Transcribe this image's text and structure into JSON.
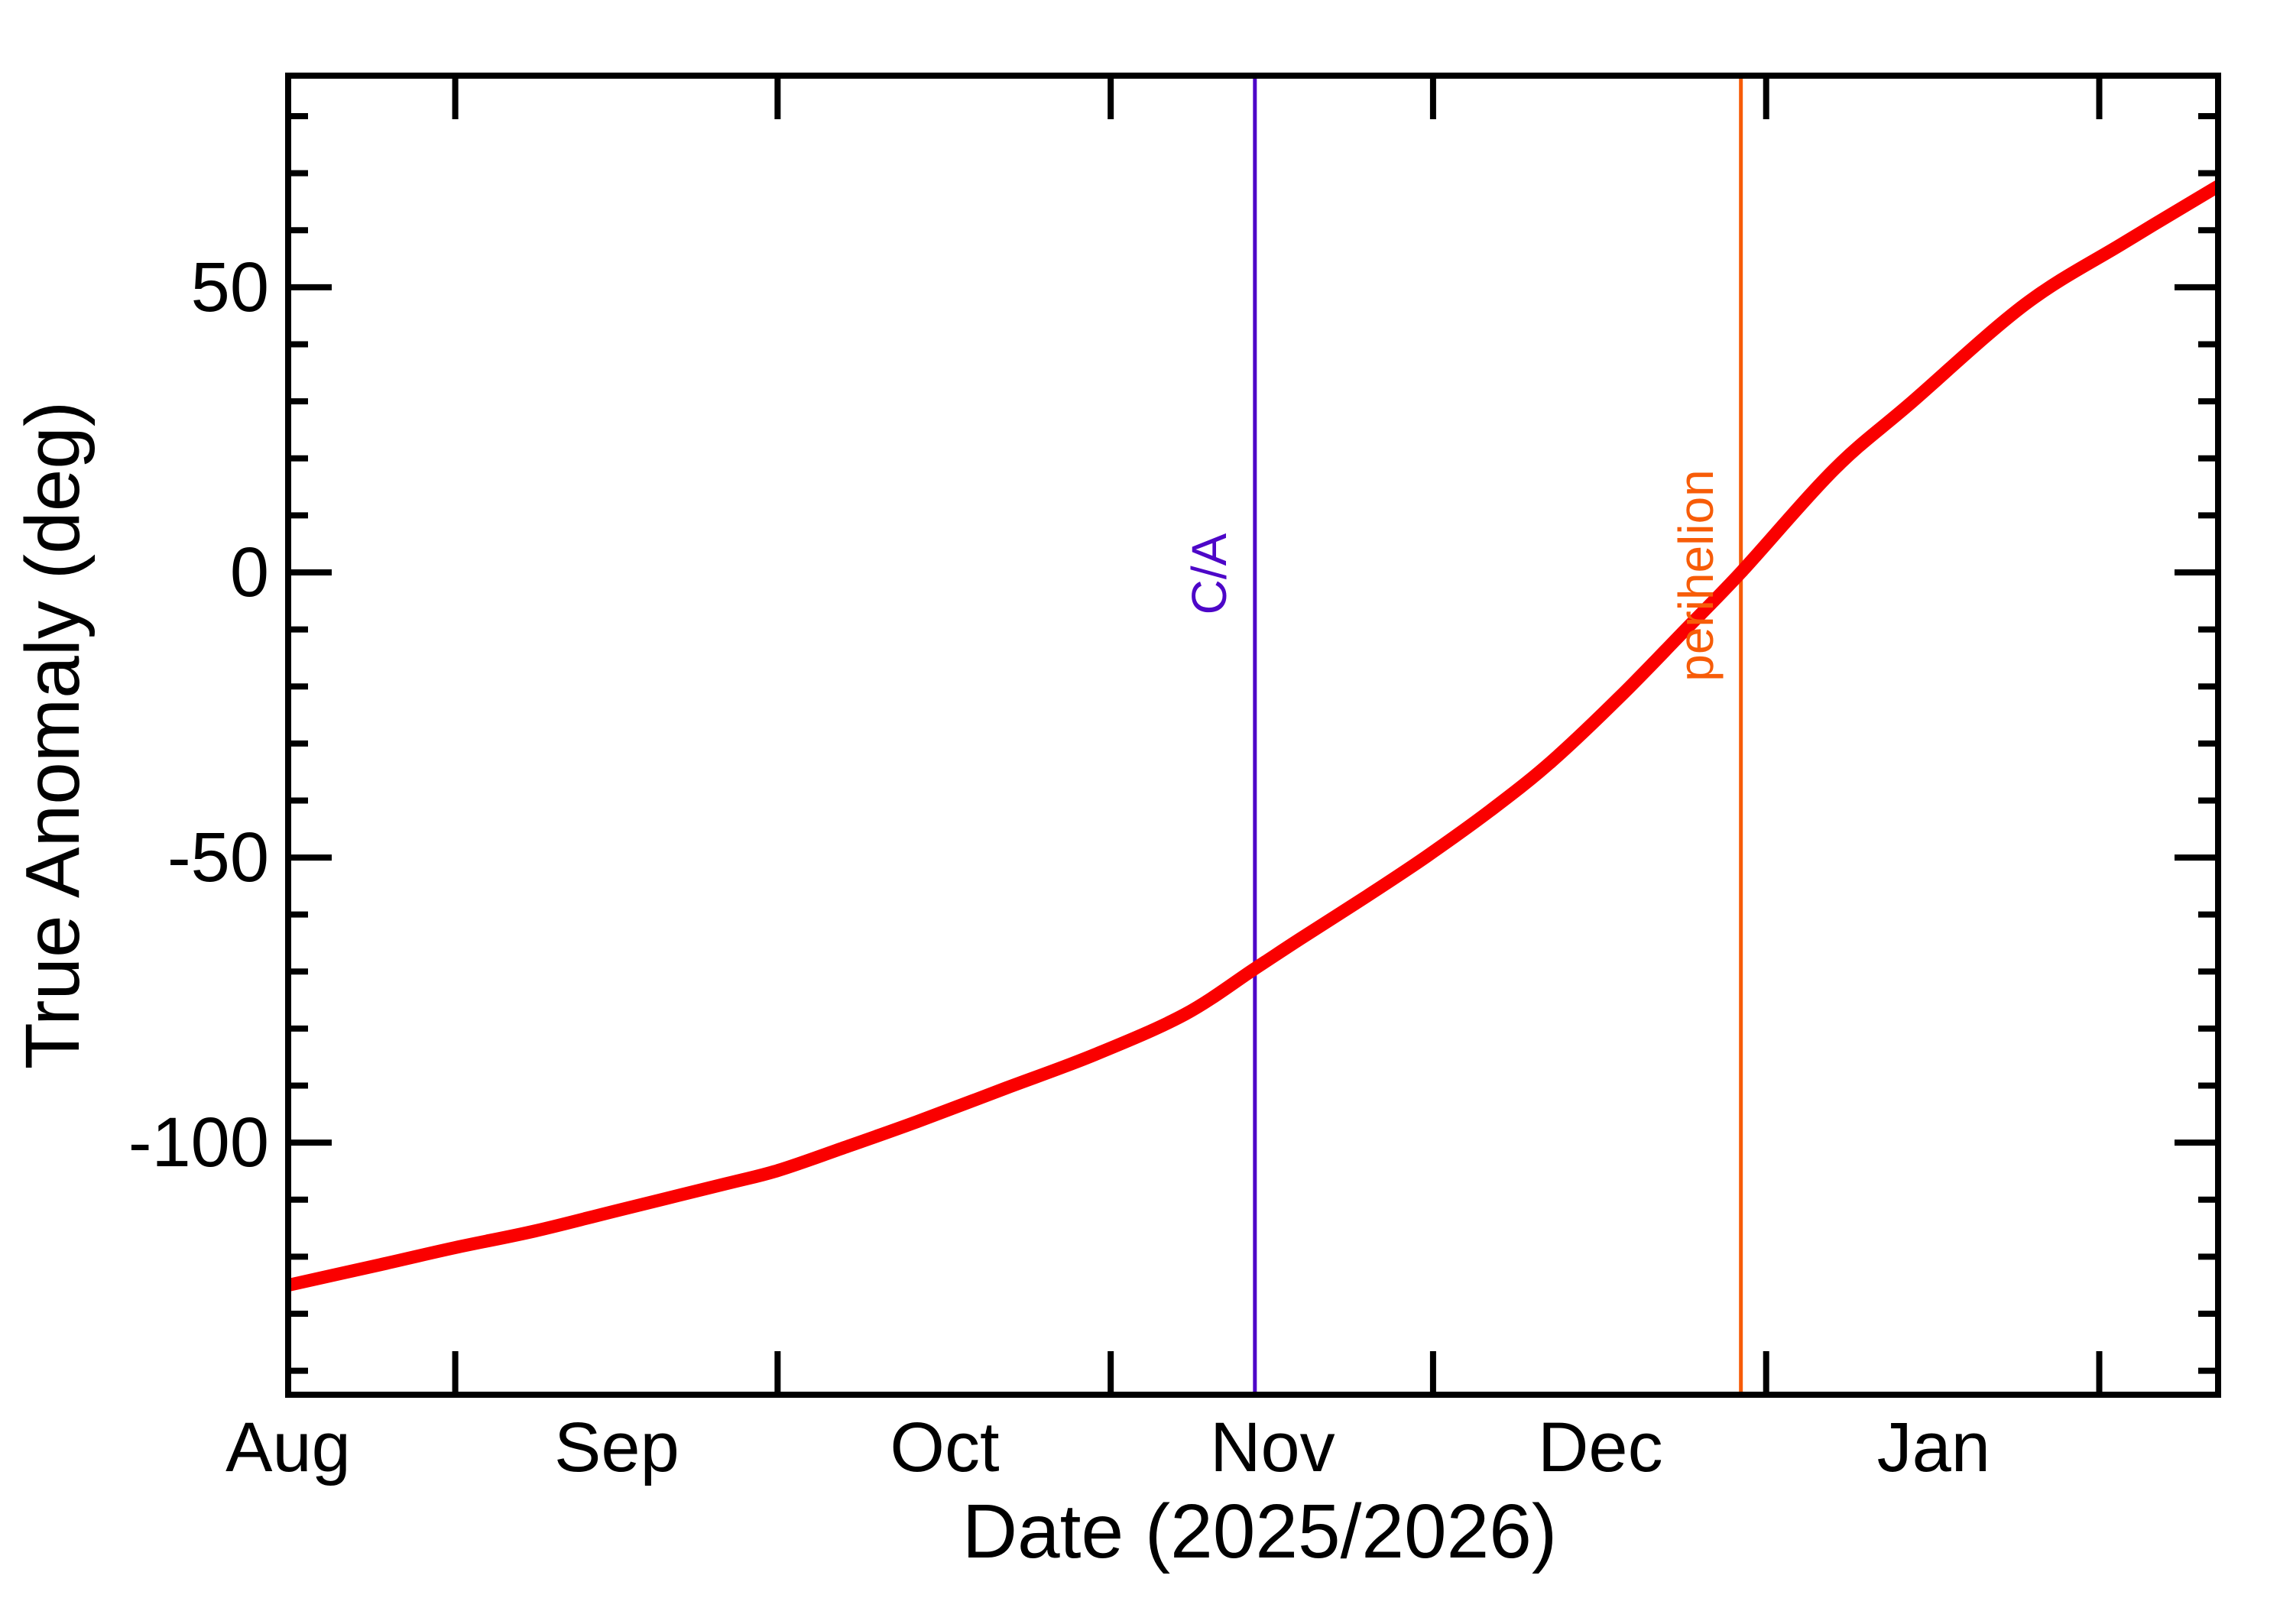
{
  "chart_data": {
    "type": "line",
    "title": "",
    "xlabel": "Date (2025/2026)",
    "ylabel": "True Anomaly (deg)",
    "x_unit": "days since 2025-08-01",
    "x_range": [
      15.45,
      195.06
    ],
    "y_range": [
      -144.2,
      87.1
    ],
    "grid": "off",
    "legend": "none",
    "x_ticks": [
      {
        "t": 31,
        "date": "Sep 1"
      },
      {
        "t": 61,
        "date": "Oct 1"
      },
      {
        "t": 92,
        "date": "Nov 1"
      },
      {
        "t": 122,
        "date": "Dec 1"
      },
      {
        "t": 153,
        "date": "Jan 1"
      },
      {
        "t": 184,
        "date": "Feb 1"
      }
    ],
    "x_month_labels": [
      {
        "label": "Aug",
        "t": 15.45
      },
      {
        "label": "Sep",
        "t": 46.03
      },
      {
        "label": "Oct",
        "t": 76.55
      },
      {
        "label": "Nov",
        "t": 107.06
      },
      {
        "label": "Dec",
        "t": 137.57
      },
      {
        "label": "Jan",
        "t": 168.58
      }
    ],
    "y_major_ticks": [
      {
        "label": "50",
        "v": 50
      },
      {
        "label": "0",
        "v": 0
      },
      {
        "label": "-50",
        "v": -50
      },
      {
        "label": "-100",
        "v": -100
      }
    ],
    "y_minor_step": 10,
    "series": [
      {
        "name": "true-anomaly-curve",
        "color": "#fa0000",
        "width": 17,
        "points": [
          [
            15.45,
            -125.0
          ],
          [
            24.0,
            -121.4
          ],
          [
            31.0,
            -118.4
          ],
          [
            38.4,
            -115.5
          ],
          [
            46.3,
            -111.8
          ],
          [
            56.2,
            -107.2
          ],
          [
            61.0,
            -104.9
          ],
          [
            67.0,
            -101.0
          ],
          [
            74.0,
            -96.3
          ],
          [
            82.3,
            -90.4
          ],
          [
            90.6,
            -84.5
          ],
          [
            98.9,
            -77.5
          ],
          [
            105.4,
            -69.5
          ],
          [
            109.6,
            -64.3
          ],
          [
            115.9,
            -56.7
          ],
          [
            121.4,
            -49.8
          ],
          [
            127.3,
            -41.8
          ],
          [
            133.0,
            -33.2
          ],
          [
            139.4,
            -21.8
          ],
          [
            145.1,
            -10.8
          ],
          [
            150.65,
            0.0
          ],
          [
            159.3,
            18.0
          ],
          [
            166.4,
            29.6
          ],
          [
            177.1,
            47.0
          ],
          [
            186.3,
            57.8
          ],
          [
            194.6,
            67.2
          ],
          [
            195.1,
            67.6
          ]
        ]
      }
    ],
    "annotations": [
      {
        "label": "C/A",
        "t": 105.42,
        "date": "Nov 14",
        "color": "#4d06c8"
      },
      {
        "label": "perihelion",
        "t": 150.65,
        "date": "Dec 30",
        "color": "#f75c08"
      }
    ],
    "axis_color": "#000000",
    "background_color": "#ffffff"
  }
}
